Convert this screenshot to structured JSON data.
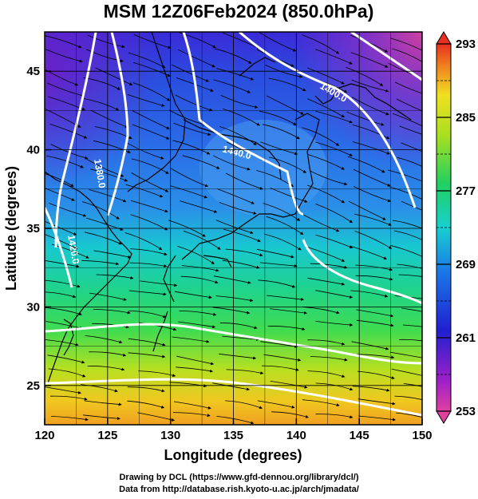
{
  "title": "MSM 12Z06Feb2024 (850.0hPa)",
  "xlabel": "Longitude (degrees)",
  "ylabel": "Latitude  (degrees)",
  "x_ticks": [
    "120",
    "125",
    "130",
    "135",
    "140",
    "145",
    "150"
  ],
  "y_ticks": [
    "25",
    "30",
    "35",
    "40",
    "45"
  ],
  "colorbar": {
    "ticks": [
      "293",
      "285",
      "277",
      "269",
      "261",
      "253"
    ],
    "range": [
      253,
      293
    ],
    "colors": [
      "#e0307a",
      "#a020c8",
      "#2020d0",
      "#1a6ae8",
      "#18c8d8",
      "#20d060",
      "#a8e020",
      "#f0e020",
      "#f09020",
      "#e83020"
    ]
  },
  "contour_labels": [
    "1400.0",
    "1440.0",
    "1380.0",
    "1420.0"
  ],
  "footer": {
    "line1": "Drawing by DCL (https://www.gfd-dennou.org/library/dcl/)",
    "line2": "Data from http://database.rish.kyoto-u.ac.jp/arch/jmadata/"
  },
  "map": {
    "lon_range": [
      120,
      150
    ],
    "lat_range": [
      22.5,
      47.5
    ],
    "gridlines": true,
    "field": "temperature (K) with geopotential height contours and wind streamlines"
  }
}
